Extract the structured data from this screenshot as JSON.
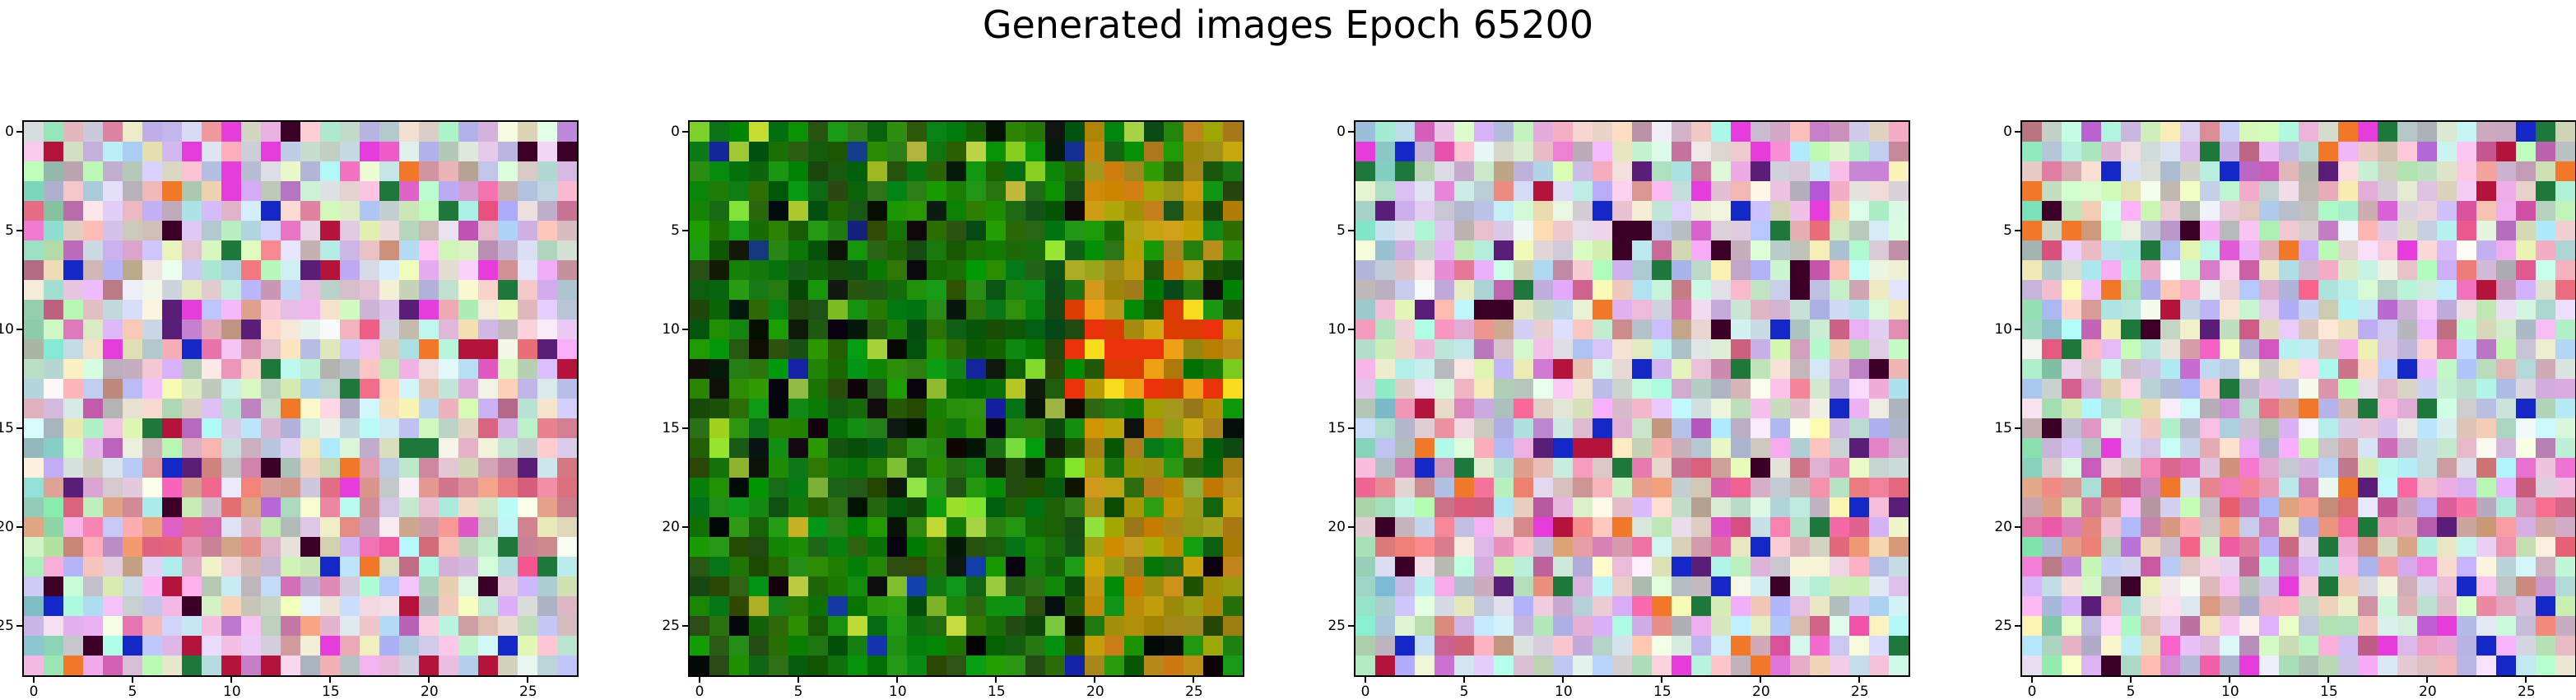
{
  "figure": {
    "title": "Generated images Epoch 65200"
  },
  "panels": [
    {
      "name": "generated-image-1",
      "palette": "pastel",
      "seed": 11,
      "grid": 28,
      "x_ticks": [
        "0",
        "5",
        "10",
        "15",
        "20",
        "25"
      ],
      "y_ticks": [
        "0",
        "5",
        "10",
        "15",
        "20",
        "25"
      ]
    },
    {
      "name": "generated-image-2",
      "palette": "green",
      "seed": 23,
      "grid": 28,
      "x_ticks": [
        "0",
        "5",
        "10",
        "15",
        "20",
        "25"
      ],
      "y_ticks": [
        "0",
        "5",
        "10",
        "15",
        "20",
        "25"
      ]
    },
    {
      "name": "generated-image-3",
      "palette": "pastel",
      "seed": 37,
      "grid": 28,
      "x_ticks": [
        "0",
        "5",
        "10",
        "15",
        "20",
        "25"
      ],
      "y_ticks": [
        "0",
        "5",
        "10",
        "15",
        "20",
        "25"
      ]
    },
    {
      "name": "generated-image-4",
      "palette": "pastel",
      "seed": 51,
      "grid": 28,
      "x_ticks": [
        "0",
        "5",
        "10",
        "15",
        "20",
        "25"
      ],
      "y_ticks": [
        "0",
        "5",
        "10",
        "15",
        "20",
        "25"
      ]
    }
  ]
}
